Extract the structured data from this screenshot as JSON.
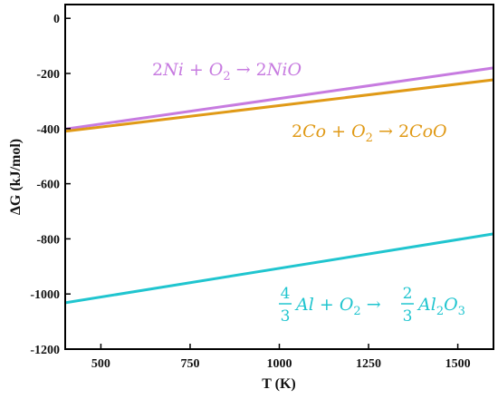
{
  "chart_data": {
    "type": "line",
    "xlabel": "T (K)",
    "ylabel": "ΔG (kJ/mol)",
    "xlim": [
      400,
      1600
    ],
    "ylim": [
      -1200,
      50
    ],
    "x_ticks": [
      500,
      750,
      1000,
      1250,
      1500
    ],
    "x_tick_labels": [
      "500",
      "750",
      "1000",
      "1250",
      "1500"
    ],
    "y_ticks": [
      0,
      -200,
      -400,
      -600,
      -800,
      -1000,
      -1200
    ],
    "y_tick_labels": [
      "0",
      "-200",
      "-400",
      "-600",
      "-800",
      "-1000",
      "-1200"
    ],
    "grid": false,
    "series": [
      {
        "name": "2Ni + O2 → 2NiO",
        "color": "#c77be0",
        "x": [
          400,
          1600
        ],
        "y": [
          -402,
          -180
        ]
      },
      {
        "name": "2Co + O2 → 2CoO",
        "color": "#e09a17",
        "x": [
          400,
          1600
        ],
        "y": [
          -410,
          -223
        ]
      },
      {
        "name": "4/3 Al + O2 → 2/3 Al2O3",
        "color": "#20c5cf",
        "x": [
          400,
          1600
        ],
        "y": [
          -1032,
          -782
        ]
      }
    ],
    "annotations": {
      "ni": {
        "coef": "2",
        "metal": "Ni",
        "plus": " + ",
        "o": "O",
        "o_sub": "2",
        "arrow": " → ",
        "coef2": "2",
        "product": "NiO"
      },
      "co": {
        "coef": "2",
        "metal": "Co",
        "plus": " + ",
        "o": "O",
        "o_sub": "2",
        "arrow": " → ",
        "coef2": "2",
        "product": "CoO"
      },
      "al": {
        "frac1_num": "4",
        "frac1_den": "3",
        "metal": "Al",
        "plus": " + ",
        "o": "O",
        "o_sub": "2",
        "arrow": " → ",
        "frac2_num": "2",
        "frac2_den": "3",
        "p1": "Al",
        "p1_sub": "2",
        "p2": "O",
        "p2_sub": "3"
      }
    }
  }
}
